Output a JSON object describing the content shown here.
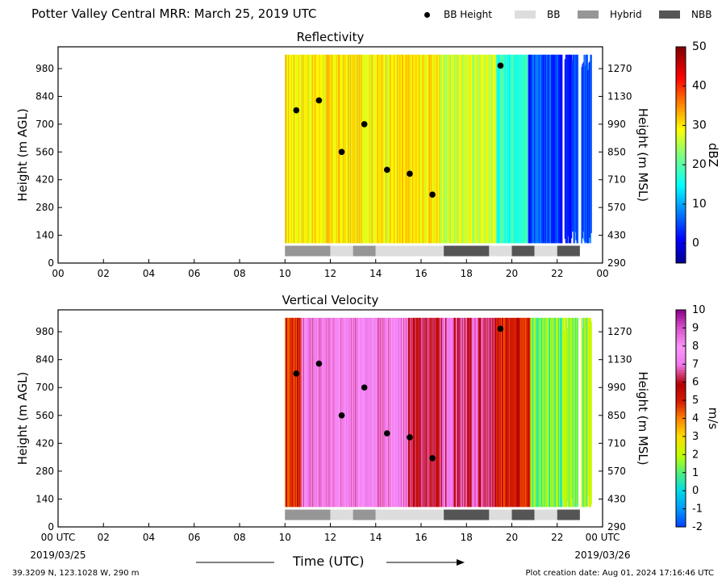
{
  "header": {
    "title": "Potter Valley Central MRR:  March 25, 2019 UTC"
  },
  "legend": [
    {
      "label": "BB Height",
      "kind": "dot",
      "color": "#000000"
    },
    {
      "label": "BB",
      "kind": "swatch",
      "color": "#dddddd"
    },
    {
      "label": "Hybrid",
      "kind": "swatch",
      "color": "#969696"
    },
    {
      "label": "NBB",
      "kind": "swatch",
      "color": "#555555"
    }
  ],
  "colors": {
    "bb": "#dddddd",
    "hybrid": "#969696",
    "nbb": "#555555",
    "dots": "#000000"
  },
  "footer": {
    "location": "39.3209 N, 123.1028 W, 290 m",
    "created": "Plot creation date: Aug 01, 2024 17:16:46 UTC",
    "xlabel": "Time (UTC)"
  },
  "chart_data": [
    {
      "type": "heatmap",
      "title": "Reflectivity",
      "xlabel": "",
      "ylabel": "Height (m AGL)",
      "ylabel_right": "Height (m MSL)",
      "xlim": [
        0,
        24
      ],
      "ylim": [
        0,
        1090
      ],
      "x_ticks": [
        "00",
        "02",
        "04",
        "06",
        "08",
        "10",
        "12",
        "14",
        "16",
        "18",
        "20",
        "22",
        "00"
      ],
      "y_ticks": [
        0,
        140,
        280,
        420,
        560,
        700,
        840,
        980
      ],
      "y_ticks_right": [
        290,
        430,
        570,
        710,
        850,
        990,
        1130,
        1270
      ],
      "colorbar": {
        "label": "dBZ",
        "min": -5,
        "max": 50,
        "ticks": [
          0,
          10,
          20,
          30,
          40,
          50
        ],
        "palette": "jet"
      },
      "data_extent_hours": [
        10,
        23.5
      ],
      "data_height_range": [
        100,
        1050
      ],
      "bb_height": {
        "x": [
          10.5,
          11.5,
          12.5,
          13.5,
          14.5,
          15.5,
          16.5,
          19.5
        ],
        "y": [
          770,
          820,
          560,
          700,
          470,
          450,
          345,
          995
        ]
      },
      "bands": [
        {
          "type": "Hybrid",
          "start": 10,
          "end": 12
        },
        {
          "type": "BB",
          "start": 12,
          "end": 13
        },
        {
          "type": "Hybrid",
          "start": 13,
          "end": 14
        },
        {
          "type": "BB",
          "start": 14,
          "end": 17
        },
        {
          "type": "NBB",
          "start": 17,
          "end": 19
        },
        {
          "type": "BB",
          "start": 19,
          "end": 20
        },
        {
          "type": "NBB",
          "start": 20,
          "end": 21
        },
        {
          "type": "BB",
          "start": 21,
          "end": 22
        },
        {
          "type": "NBB",
          "start": 22,
          "end": 23
        }
      ],
      "trend": [
        {
          "start": 10,
          "end": 16.8,
          "value": 30
        },
        {
          "start": 16.8,
          "end": 19.3,
          "value": 27
        },
        {
          "start": 19.3,
          "end": 20.7,
          "value": 18
        },
        {
          "start": 20.7,
          "end": 22.2,
          "value": 5
        },
        {
          "start": 22.2,
          "end": 23.5,
          "value": 4
        }
      ]
    },
    {
      "type": "heatmap",
      "title": "Vertical Velocity",
      "xlabel": "Time (UTC)",
      "ylabel": "Height (m AGL)",
      "ylabel_right": "Height (m MSL)",
      "xlim": [
        0,
        24
      ],
      "ylim": [
        0,
        1090
      ],
      "x_ticks": [
        "00 UTC",
        "02",
        "04",
        "06",
        "08",
        "10",
        "12",
        "14",
        "16",
        "18",
        "20",
        "22",
        "00 UTC"
      ],
      "x_tick_dates": {
        "start": "2019/03/25",
        "end": "2019/03/26"
      },
      "y_ticks": [
        0,
        140,
        280,
        420,
        560,
        700,
        840,
        980
      ],
      "y_ticks_right": [
        290,
        430,
        570,
        710,
        850,
        990,
        1130,
        1270
      ],
      "colorbar": {
        "label": "m/s",
        "min": -2,
        "max": 10,
        "ticks": [
          -2,
          -1,
          0,
          1,
          2,
          3,
          4,
          5,
          6,
          7,
          8,
          9,
          10
        ],
        "palette": "velocity"
      },
      "data_extent_hours": [
        10,
        23.5
      ],
      "data_height_range": [
        100,
        1050
      ],
      "bb_height": {
        "x": [
          10.5,
          11.5,
          12.5,
          13.5,
          14.5,
          15.5,
          16.5,
          19.5
        ],
        "y": [
          770,
          820,
          560,
          700,
          470,
          450,
          345,
          995
        ]
      },
      "bands": [
        {
          "type": "Hybrid",
          "start": 10,
          "end": 12
        },
        {
          "type": "BB",
          "start": 12,
          "end": 13
        },
        {
          "type": "Hybrid",
          "start": 13,
          "end": 14
        },
        {
          "type": "BB",
          "start": 14,
          "end": 17
        },
        {
          "type": "NBB",
          "start": 17,
          "end": 19
        },
        {
          "type": "BB",
          "start": 19,
          "end": 20
        },
        {
          "type": "NBB",
          "start": 20,
          "end": 21
        },
        {
          "type": "BB",
          "start": 21,
          "end": 22
        },
        {
          "type": "NBB",
          "start": 22,
          "end": 23
        }
      ],
      "trend": [
        {
          "start": 10,
          "end": 10.7,
          "value": 5
        },
        {
          "start": 10.7,
          "end": 15.4,
          "value": 7.5
        },
        {
          "start": 15.4,
          "end": 16.9,
          "value": 6
        },
        {
          "start": 16.9,
          "end": 19.3,
          "value": 6.6
        },
        {
          "start": 19.3,
          "end": 20.8,
          "value": 5.2
        },
        {
          "start": 20.8,
          "end": 22.2,
          "value": 1.2
        },
        {
          "start": 22.2,
          "end": 23.5,
          "value": 1.6
        }
      ]
    }
  ]
}
